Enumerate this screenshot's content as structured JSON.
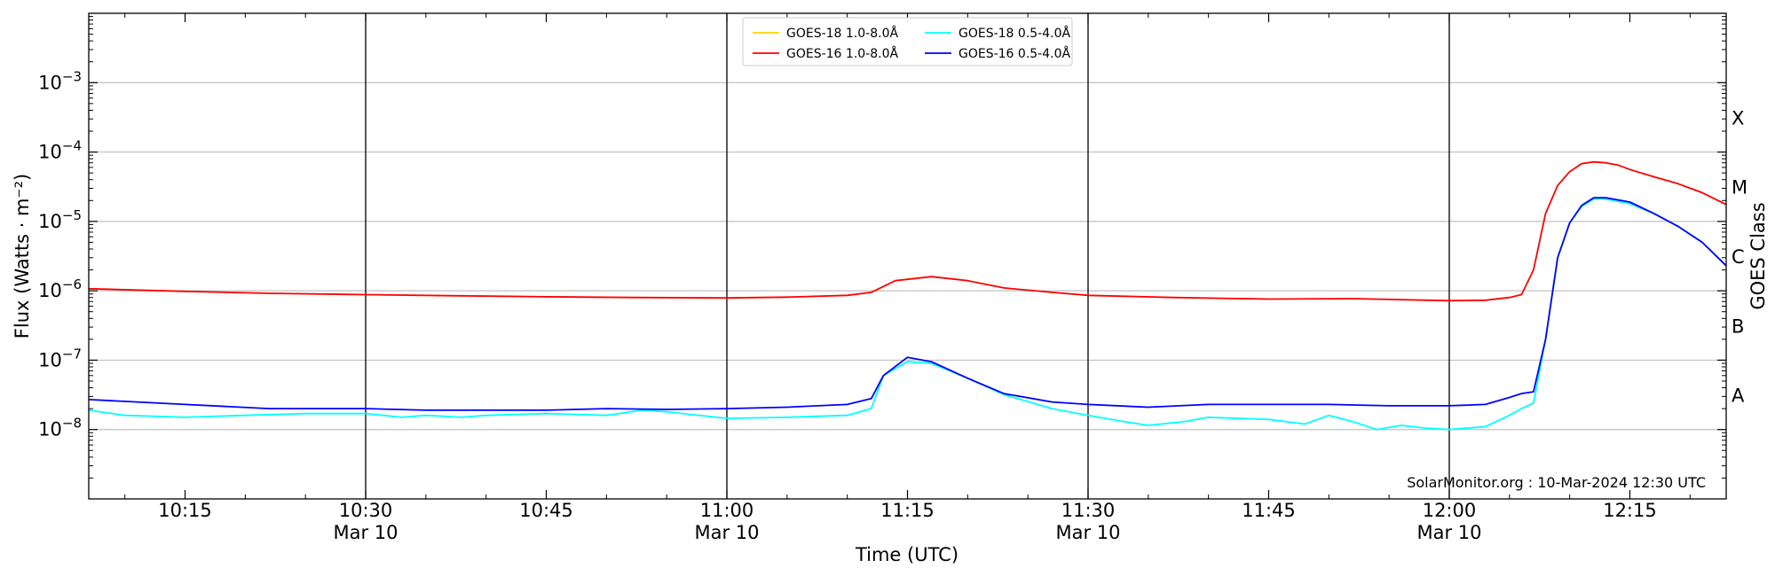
{
  "chart_data": {
    "type": "line",
    "xlabel": "Time (UTC)",
    "ylabel": "Flux (Watts · m⁻²)",
    "ylabel_right": "GOES Class",
    "yscale": "log",
    "ylim": [
      1e-09,
      0.01
    ],
    "xlim": [
      "10:07",
      "12:23"
    ],
    "grid": "horizontal",
    "legend_position": "top-center",
    "annotation": "SolarMonitor.org : 10-Mar-2024 12:30 UTC",
    "y_ticks": [
      {
        "value": 1e-08,
        "base": "10",
        "exp": "−8"
      },
      {
        "value": 1e-07,
        "base": "10",
        "exp": "−7"
      },
      {
        "value": 1e-06,
        "base": "10",
        "exp": "−6"
      },
      {
        "value": 1e-05,
        "base": "10",
        "exp": "−5"
      },
      {
        "value": 0.0001,
        "base": "10",
        "exp": "−4"
      },
      {
        "value": 0.001,
        "base": "10",
        "exp": "−3"
      }
    ],
    "goes_classes": [
      {
        "label": "A",
        "value": 1e-08
      },
      {
        "label": "B",
        "value": 1e-07
      },
      {
        "label": "C",
        "value": 1e-06
      },
      {
        "label": "M",
        "value": 1e-05
      },
      {
        "label": "X",
        "value": 0.0001
      }
    ],
    "x_ticks": [
      {
        "time": "10:15",
        "label": "10:15",
        "sub": ""
      },
      {
        "time": "10:30",
        "label": "10:30",
        "sub": "Mar 10"
      },
      {
        "time": "10:45",
        "label": "10:45",
        "sub": ""
      },
      {
        "time": "11:00",
        "label": "11:00",
        "sub": "Mar 10"
      },
      {
        "time": "11:15",
        "label": "11:15",
        "sub": ""
      },
      {
        "time": "11:30",
        "label": "11:30",
        "sub": "Mar 10"
      },
      {
        "time": "11:45",
        "label": "11:45",
        "sub": ""
      },
      {
        "time": "12:00",
        "label": "12:00",
        "sub": "Mar 10"
      },
      {
        "time": "12:15",
        "label": "12:15",
        "sub": ""
      }
    ],
    "vlines": [
      "10:30",
      "11:00",
      "11:30",
      "12:00"
    ],
    "series": [
      {
        "name": "GOES-18 1.0-8.0Å",
        "color": "#ffd700",
        "x": [],
        "y": []
      },
      {
        "name": "GOES-16 1.0-8.0Å",
        "color": "#ff0000",
        "x": [
          "10:07",
          "10:15",
          "10:22",
          "10:30",
          "10:37",
          "10:45",
          "10:52",
          "11:00",
          "11:05",
          "11:10",
          "11:12",
          "11:14",
          "11:17",
          "11:20",
          "11:23",
          "11:27",
          "11:30",
          "11:37",
          "11:45",
          "11:52",
          "12:00",
          "12:03",
          "12:05",
          "12:06",
          "12:07",
          "12:08",
          "12:09",
          "12:10",
          "12:11",
          "12:12",
          "12:13",
          "12:14",
          "12:15",
          "12:17",
          "12:19",
          "12:21",
          "12:23"
        ],
        "y": [
          1.07e-06,
          9.8e-07,
          9.2e-07,
          8.8e-07,
          8.5e-07,
          8.2e-07,
          8e-07,
          7.9e-07,
          8.1e-07,
          8.6e-07,
          9.5e-07,
          1.4e-06,
          1.6e-06,
          1.4e-06,
          1.1e-06,
          9.5e-07,
          8.6e-07,
          8e-07,
          7.6e-07,
          7.7e-07,
          7.2e-07,
          7.3e-07,
          8e-07,
          8.8e-07,
          2e-06,
          1.3e-05,
          3.3e-05,
          5.2e-05,
          6.8e-05,
          7.2e-05,
          7e-05,
          6.5e-05,
          5.6e-05,
          4.4e-05,
          3.5e-05,
          2.6e-05,
          1.75e-05
        ]
      },
      {
        "name": "GOES-18 0.5-4.0Å",
        "color": "#00ffff",
        "x": [
          "10:07",
          "10:10",
          "10:15",
          "10:20",
          "10:25",
          "10:30",
          "10:33",
          "10:35",
          "10:38",
          "10:40",
          "10:45",
          "10:50",
          "10:53",
          "10:55",
          "11:00",
          "11:05",
          "11:10",
          "11:12",
          "11:13",
          "11:15",
          "11:17",
          "11:20",
          "11:23",
          "11:27",
          "11:30",
          "11:33",
          "11:35",
          "11:38",
          "11:40",
          "11:45",
          "11:48",
          "11:50",
          "11:52",
          "11:54",
          "11:56",
          "11:58",
          "12:00",
          "12:03",
          "12:05",
          "12:06",
          "12:07",
          "12:08",
          "12:09",
          "12:10",
          "12:11",
          "12:12",
          "12:13",
          "12:15",
          "12:17",
          "12:19",
          "12:21",
          "12:23"
        ],
        "y": [
          1.9e-08,
          1.6e-08,
          1.5e-08,
          1.6e-08,
          1.7e-08,
          1.7e-08,
          1.5e-08,
          1.6e-08,
          1.5e-08,
          1.6e-08,
          1.7e-08,
          1.6e-08,
          1.9e-08,
          1.8e-08,
          1.45e-08,
          1.5e-08,
          1.6e-08,
          2e-08,
          6e-08,
          9.5e-08,
          9e-08,
          5.5e-08,
          3.2e-08,
          2e-08,
          1.6e-08,
          1.3e-08,
          1.15e-08,
          1.3e-08,
          1.5e-08,
          1.4e-08,
          1.2e-08,
          1.6e-08,
          1.3e-08,
          1e-08,
          1.15e-08,
          1.05e-08,
          1e-08,
          1.1e-08,
          1.6e-08,
          2e-08,
          2.4e-08,
          2e-07,
          3e-06,
          9.5e-06,
          1.65e-05,
          2.1e-05,
          2.1e-05,
          1.8e-05,
          1.3e-05,
          8.5e-06,
          5e-06,
          2.3e-06
        ]
      },
      {
        "name": "GOES-16 0.5-4.0Å",
        "color": "#0000ff",
        "x": [
          "10:07",
          "10:15",
          "10:22",
          "10:30",
          "10:35",
          "10:40",
          "10:45",
          "10:50",
          "10:55",
          "11:00",
          "11:05",
          "11:10",
          "11:12",
          "11:13",
          "11:15",
          "11:17",
          "11:20",
          "11:23",
          "11:27",
          "11:30",
          "11:35",
          "11:40",
          "11:45",
          "11:50",
          "11:55",
          "12:00",
          "12:03",
          "12:05",
          "12:06",
          "12:07",
          "12:08",
          "12:09",
          "12:10",
          "12:11",
          "12:12",
          "12:13",
          "12:15",
          "12:17",
          "12:19",
          "12:21",
          "12:23"
        ],
        "y": [
          2.7e-08,
          2.3e-08,
          2e-08,
          2e-08,
          1.9e-08,
          1.9e-08,
          1.9e-08,
          2e-08,
          1.95e-08,
          2e-08,
          2.1e-08,
          2.3e-08,
          2.8e-08,
          6e-08,
          1.1e-07,
          9.5e-08,
          5.5e-08,
          3.3e-08,
          2.5e-08,
          2.3e-08,
          2.1e-08,
          2.3e-08,
          2.3e-08,
          2.3e-08,
          2.2e-08,
          2.2e-08,
          2.3e-08,
          2.9e-08,
          3.3e-08,
          3.5e-08,
          2e-07,
          3e-06,
          9.5e-06,
          1.7e-05,
          2.2e-05,
          2.2e-05,
          1.9e-05,
          1.3e-05,
          8.5e-06,
          5e-06,
          2.3e-06
        ]
      }
    ]
  }
}
